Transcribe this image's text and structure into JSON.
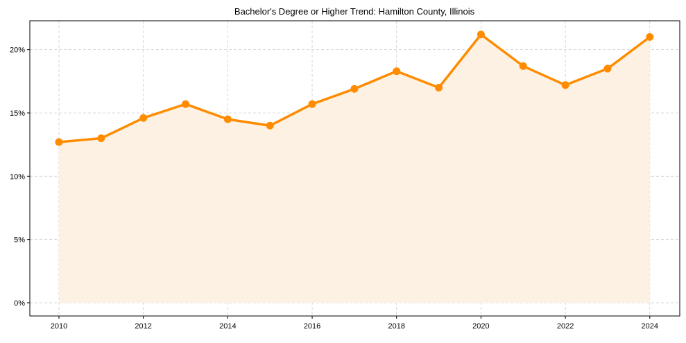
{
  "chart_data": {
    "type": "area",
    "title": "Bachelor's Degree or Higher Trend: Hamilton County, Illinois",
    "xlabel": "",
    "ylabel": "",
    "x": [
      2010,
      2011,
      2012,
      2013,
      2014,
      2015,
      2016,
      2017,
      2018,
      2019,
      2020,
      2021,
      2022,
      2023,
      2024
    ],
    "values": [
      12.7,
      13.0,
      14.6,
      15.7,
      14.5,
      14.0,
      15.7,
      16.9,
      18.3,
      17.0,
      21.2,
      18.7,
      17.2,
      18.5,
      21.0
    ],
    "xticks": [
      2010,
      2012,
      2014,
      2016,
      2018,
      2020,
      2022,
      2024
    ],
    "xtick_labels": [
      "2010",
      "2012",
      "2014",
      "2016",
      "2018",
      "2020",
      "2022",
      "2024"
    ],
    "yticks": [
      0,
      5,
      10,
      15,
      20
    ],
    "ytick_labels": [
      "0%",
      "5%",
      "10%",
      "15%",
      "20%"
    ],
    "xlim": [
      2009.31,
      2024.71
    ],
    "ylim": [
      -1.04,
      22.28
    ],
    "grid": true,
    "line_color": "#ff8c00",
    "fill_color": "#fdf1e4",
    "grid_color": "#cccccc"
  }
}
